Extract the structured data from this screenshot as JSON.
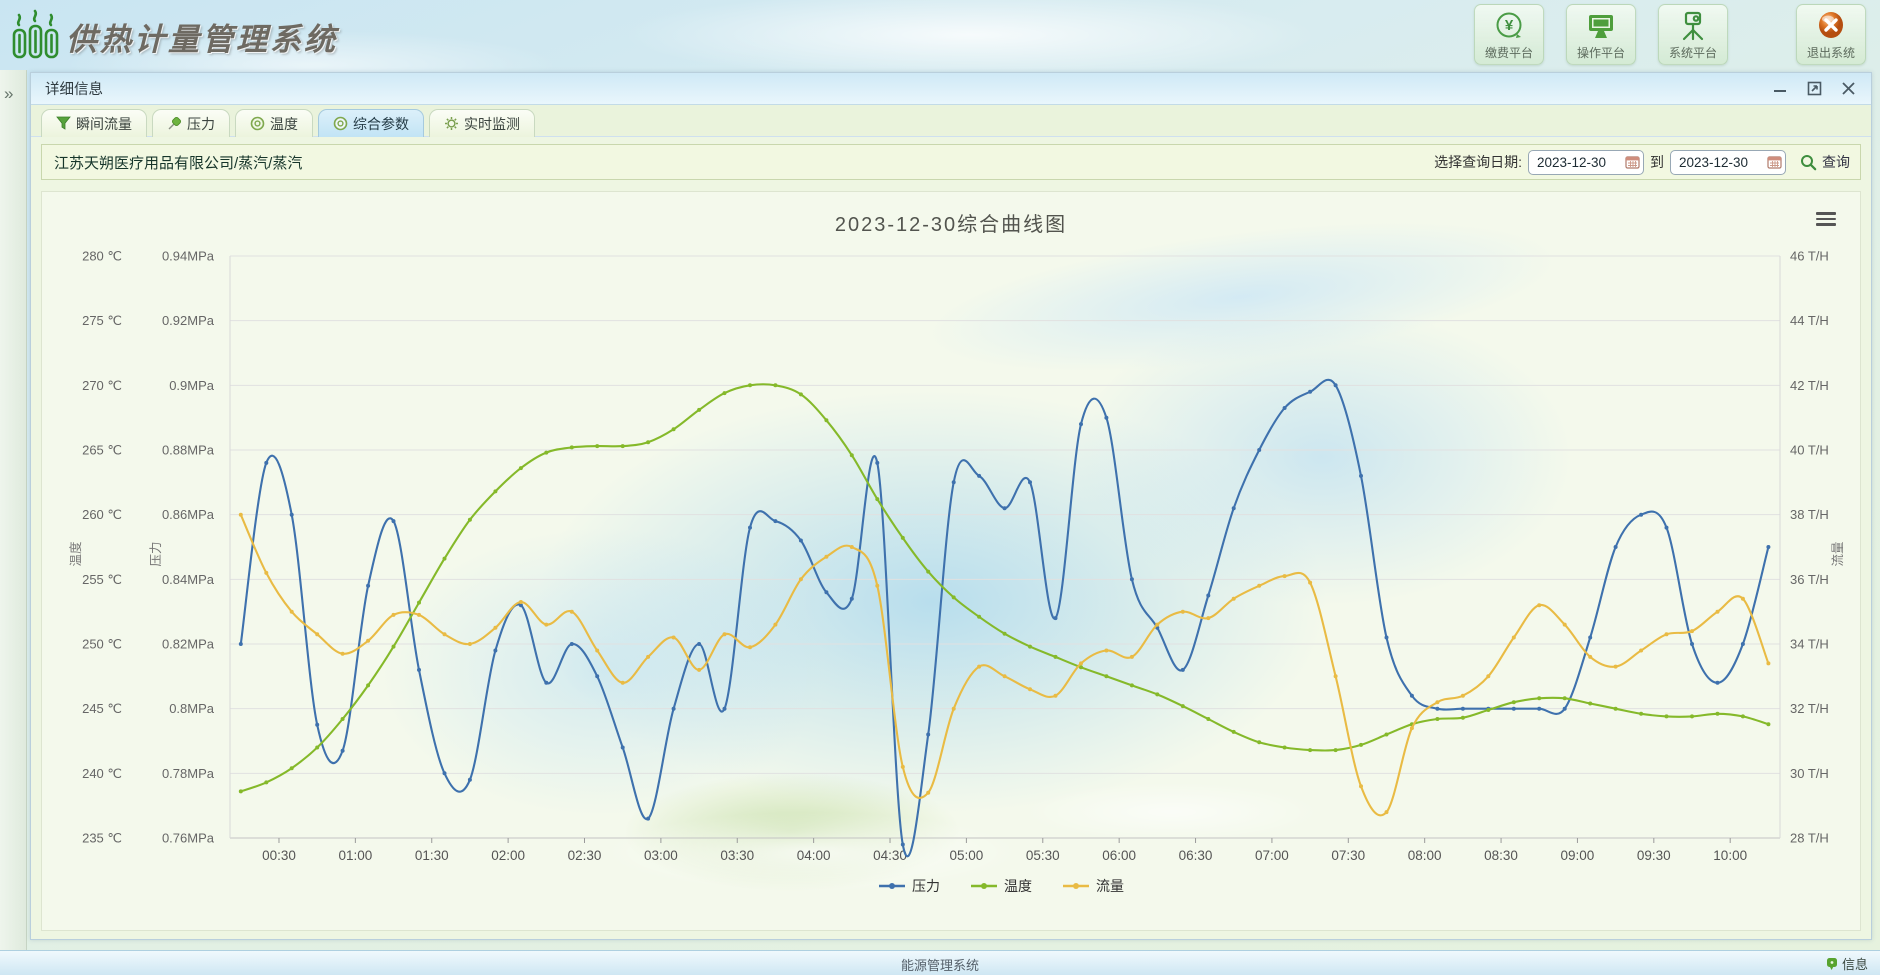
{
  "header": {
    "title": "供热计量管理系统",
    "nav": [
      {
        "label": "缴费平台",
        "icon": "yuan-circle-icon"
      },
      {
        "label": "操作平台",
        "icon": "monitor-icon"
      },
      {
        "label": "系统平台",
        "icon": "projector-icon"
      },
      {
        "label": "退出系统",
        "icon": "exit-icon"
      }
    ]
  },
  "sidebar": {
    "expander": "»"
  },
  "panel": {
    "title": "详细信息"
  },
  "tabs": [
    {
      "label": "瞬间流量",
      "icon": "funnel-icon",
      "active": false
    },
    {
      "label": "压力",
      "icon": "pushpin-icon",
      "active": false
    },
    {
      "label": "温度",
      "icon": "disc-icon",
      "active": false
    },
    {
      "label": "综合参数",
      "icon": "disc-icon",
      "active": true
    },
    {
      "label": "实时监测",
      "icon": "gear-icon",
      "active": false
    }
  ],
  "query_bar": {
    "company": "江苏天朔医疗用品有限公司/蒸汽/蒸汽",
    "date_label": "选择查询日期:",
    "date_from": "2023-12-30",
    "to_label": "到",
    "date_to": "2023-12-30",
    "search_label": "查询"
  },
  "statusbar": {
    "center": "能源管理系统",
    "right": "信息"
  },
  "chart_data": {
    "type": "line",
    "title": "2023-12-30综合曲线图",
    "legend_position": "bottom",
    "grid": true,
    "x_axis": {
      "tick_labels": [
        "00:30",
        "01:00",
        "01:30",
        "02:00",
        "02:30",
        "03:00",
        "03:30",
        "04:00",
        "04:30",
        "05:00",
        "05:30",
        "06:00",
        "06:30",
        "07:00",
        "07:30",
        "08:00",
        "08:30",
        "09:00",
        "09:30",
        "10:00"
      ]
    },
    "axes": {
      "temperature": {
        "name": "温度",
        "min": 235,
        "max": 280,
        "tick_labels": [
          "280 ℃",
          "275 ℃",
          "270 ℃",
          "265 ℃",
          "260 ℃",
          "255 ℃",
          "250 ℃",
          "245 ℃",
          "240 ℃",
          "235 ℃"
        ]
      },
      "pressure": {
        "name": "压力",
        "min": 0.76,
        "max": 0.94,
        "tick_labels": [
          "0.94MPa",
          "0.92MPa",
          "0.9MPa",
          "0.88MPa",
          "0.86MPa",
          "0.84MPa",
          "0.82MPa",
          "0.8MPa",
          "0.78MPa",
          "0.76MPa"
        ]
      },
      "flow": {
        "name": "流量",
        "min": 28,
        "max": 46,
        "tick_labels": [
          "46 T/H",
          "44 T/H",
          "42 T/H",
          "40 T/H",
          "38 T/H",
          "36 T/H",
          "34 T/H",
          "32 T/H",
          "30 T/H",
          "28 T/H"
        ]
      }
    },
    "times": [
      "00:15",
      "00:25",
      "00:35",
      "00:45",
      "00:55",
      "01:05",
      "01:15",
      "01:25",
      "01:35",
      "01:45",
      "01:55",
      "02:05",
      "02:15",
      "02:25",
      "02:35",
      "02:45",
      "02:55",
      "03:05",
      "03:15",
      "03:25",
      "03:35",
      "03:45",
      "03:55",
      "04:05",
      "04:15",
      "04:25",
      "04:35",
      "04:45",
      "04:55",
      "05:05",
      "05:15",
      "05:25",
      "05:35",
      "05:45",
      "05:55",
      "06:05",
      "06:15",
      "06:25",
      "06:35",
      "06:45",
      "06:55",
      "07:05",
      "07:15",
      "07:25",
      "07:35",
      "07:45",
      "07:55",
      "08:05",
      "08:15",
      "08:25",
      "08:35",
      "08:45",
      "08:55",
      "09:05",
      "09:15",
      "09:25",
      "09:35",
      "09:45",
      "09:55",
      "10:05",
      "10:15"
    ],
    "series": [
      {
        "name": "压力",
        "unit": "MPa",
        "axis": "pressure",
        "color": "#3e71ad",
        "values": [
          0.82,
          0.876,
          0.86,
          0.795,
          0.787,
          0.838,
          0.858,
          0.812,
          0.78,
          0.778,
          0.818,
          0.832,
          0.808,
          0.82,
          0.81,
          0.788,
          0.766,
          0.8,
          0.82,
          0.8,
          0.856,
          0.858,
          0.852,
          0.836,
          0.834,
          0.876,
          0.758,
          0.792,
          0.87,
          0.872,
          0.862,
          0.87,
          0.828,
          0.888,
          0.89,
          0.84,
          0.825,
          0.812,
          0.835,
          0.862,
          0.88,
          0.893,
          0.898,
          0.9,
          0.872,
          0.822,
          0.804,
          0.8,
          0.8,
          0.8,
          0.8,
          0.8,
          0.8,
          0.822,
          0.85,
          0.86,
          0.856,
          0.82,
          0.808,
          0.82,
          0.85
        ]
      },
      {
        "name": "温度",
        "unit": "℃",
        "axis": "temperature",
        "color": "#85b92a",
        "values": [
          238.6,
          239.3,
          240.4,
          242.0,
          244.2,
          246.8,
          249.8,
          253.2,
          256.6,
          259.6,
          261.8,
          263.6,
          264.8,
          265.2,
          265.3,
          265.3,
          265.6,
          266.6,
          268.1,
          269.4,
          270.0,
          270.0,
          269.3,
          267.3,
          264.6,
          261.2,
          258.2,
          255.6,
          253.6,
          252.1,
          250.8,
          249.8,
          249.0,
          248.2,
          247.5,
          246.8,
          246.1,
          245.2,
          244.2,
          243.2,
          242.4,
          242.0,
          241.8,
          241.8,
          242.2,
          243.0,
          243.8,
          244.2,
          244.3,
          244.9,
          245.5,
          245.8,
          245.8,
          245.4,
          245.0,
          244.6,
          244.4,
          244.4,
          244.6,
          244.4,
          243.8
        ]
      },
      {
        "name": "流量",
        "unit": "T/H",
        "axis": "flow",
        "color": "#e9bb44",
        "values": [
          38.0,
          36.2,
          35.0,
          34.3,
          33.7,
          34.1,
          34.9,
          34.9,
          34.3,
          34.0,
          34.5,
          35.3,
          34.6,
          35.0,
          33.8,
          32.8,
          33.6,
          34.2,
          33.2,
          34.3,
          33.9,
          34.6,
          36.0,
          36.7,
          37.0,
          35.8,
          30.2,
          29.4,
          32.0,
          33.3,
          33.0,
          32.6,
          32.4,
          33.4,
          33.8,
          33.6,
          34.6,
          35.0,
          34.8,
          35.4,
          35.8,
          36.1,
          35.9,
          33.0,
          29.6,
          28.8,
          31.4,
          32.2,
          32.4,
          33.0,
          34.2,
          35.2,
          34.6,
          33.6,
          33.3,
          33.8,
          34.3,
          34.4,
          35.0,
          35.4,
          33.4
        ]
      }
    ]
  }
}
